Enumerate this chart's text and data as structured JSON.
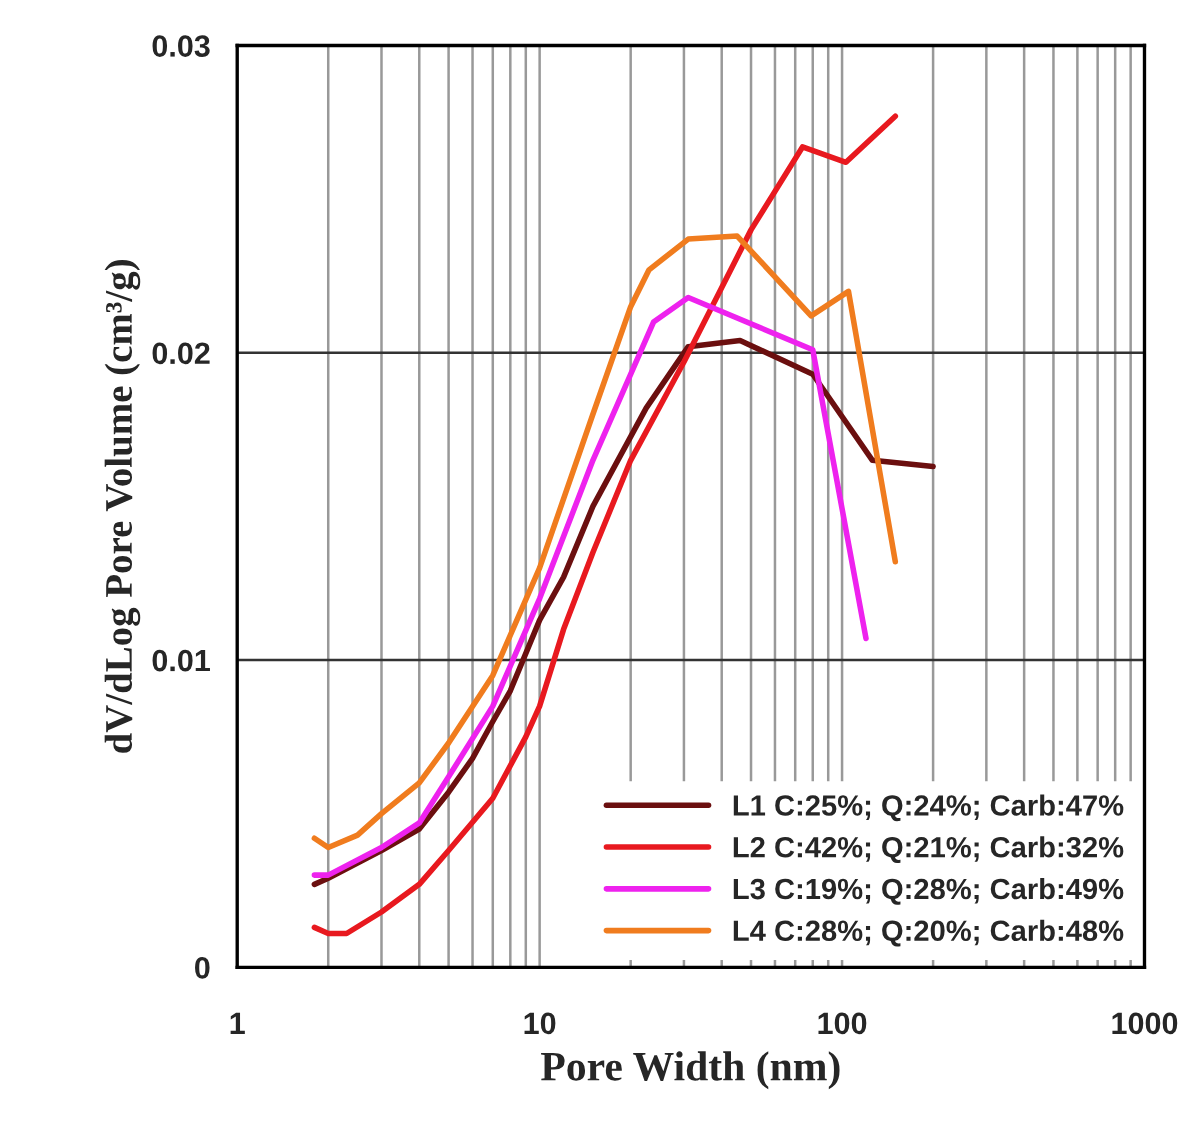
{
  "chart_data": {
    "type": "line",
    "xlabel": "Pore Width (nm)",
    "ylabel": "dV/dLog Pore Volume (cm³/g)",
    "log": "x",
    "xlim": [
      1,
      1000
    ],
    "xticks": [
      1,
      10,
      100,
      1000
    ],
    "ylim": [
      0,
      0.03
    ],
    "yticks": [
      0,
      0.01,
      0.02,
      0.03
    ],
    "grid": true,
    "legend": "bottom right",
    "marker": "none",
    "line_style": "solid",
    "series": [
      {
        "name": "L1 C:25%; Q:24%; Carb:47%",
        "color": "#6b0f0f",
        "x": [
          1.8,
          2,
          3,
          4,
          5,
          6,
          7,
          8,
          10,
          12,
          15,
          22.5,
          31,
          46,
          80,
          126,
          200
        ],
        "values": [
          0.0027,
          0.0029,
          0.0038,
          0.0045,
          0.0057,
          0.0068,
          0.008,
          0.009,
          0.0113,
          0.0127,
          0.015,
          0.0182,
          0.0202,
          0.0204,
          0.0193,
          0.0165,
          0.0163
        ]
      },
      {
        "name": "L2 C:42%; Q:21%; Carb:32%",
        "color": "#e8191f",
        "x": [
          1.8,
          2,
          2.3,
          3,
          4,
          5,
          7,
          9,
          10,
          12,
          15,
          20,
          30,
          50,
          74,
          103,
          150
        ],
        "values": [
          0.0013,
          0.0011,
          0.0011,
          0.0018,
          0.0027,
          0.0038,
          0.0055,
          0.0075,
          0.0085,
          0.011,
          0.0135,
          0.0165,
          0.0197,
          0.024,
          0.0267,
          0.0262,
          0.0277
        ]
      },
      {
        "name": "L3 C:19%; Q:28%; Carb:49%",
        "color": "#ee22ee",
        "x": [
          1.8,
          2,
          3,
          4,
          5,
          7,
          10,
          15,
          23.8,
          31,
          80,
          120
        ],
        "values": [
          0.003,
          0.003,
          0.0039,
          0.0047,
          0.0062,
          0.0085,
          0.012,
          0.0165,
          0.021,
          0.0218,
          0.0201,
          0.0107
        ]
      },
      {
        "name": "L4 C:28%; Q:20%; Carb:48%",
        "color": "#f07c1e",
        "x": [
          1.8,
          2,
          2.5,
          3,
          4,
          5,
          7,
          10,
          15,
          20,
          23,
          31,
          45,
          79,
          105,
          150
        ],
        "values": [
          0.0042,
          0.0039,
          0.0043,
          0.005,
          0.006,
          0.0073,
          0.0095,
          0.013,
          0.018,
          0.0215,
          0.0227,
          0.0237,
          0.0238,
          0.0212,
          0.022,
          0.0132
        ]
      }
    ]
  }
}
